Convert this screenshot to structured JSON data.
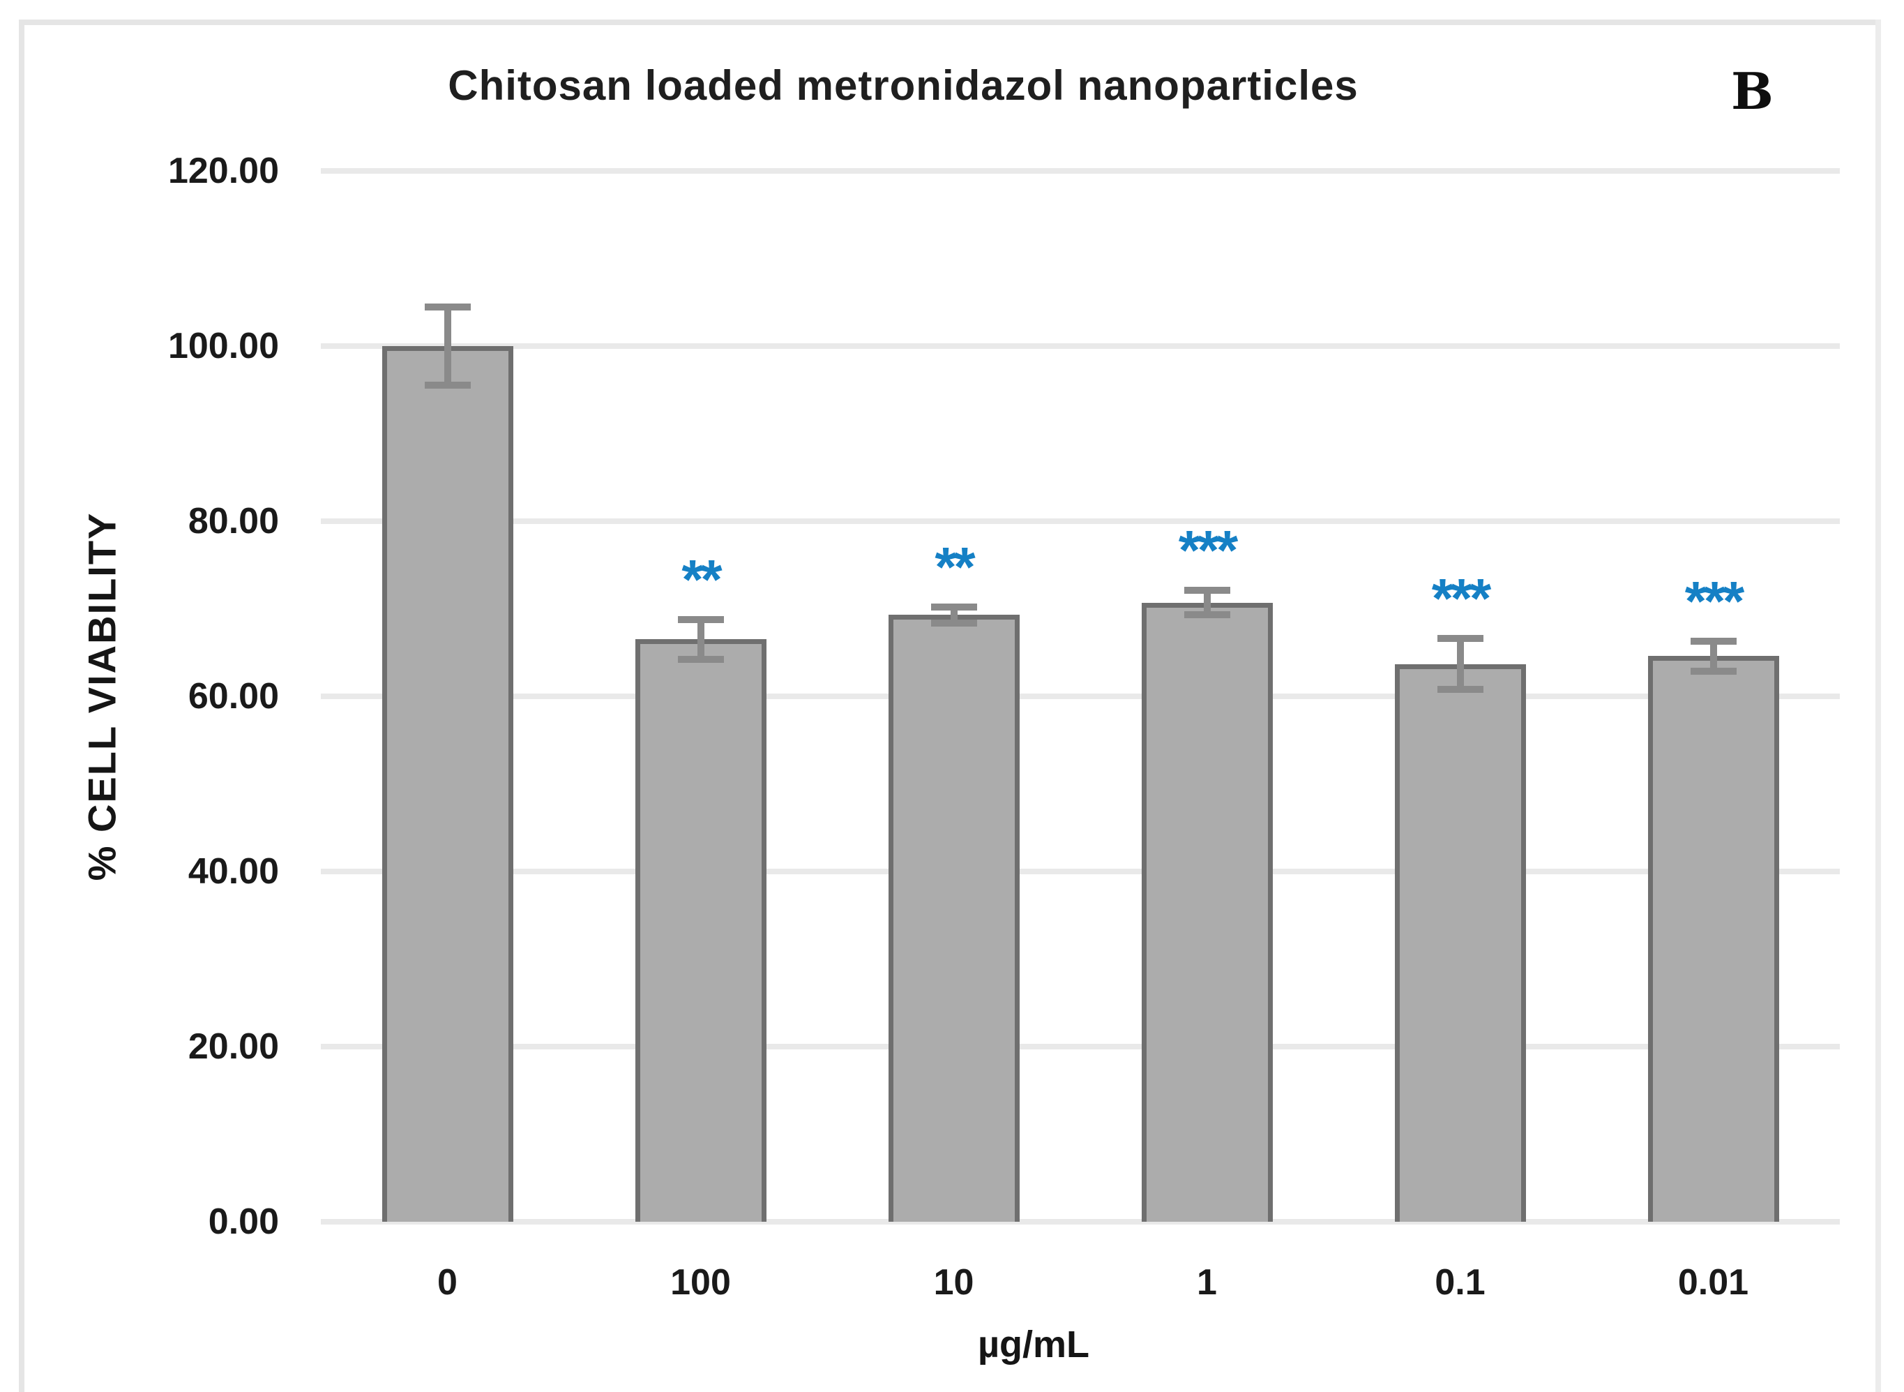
{
  "chart_data": {
    "type": "bar",
    "title": "Chitosan loaded metronidazol nanoparticles",
    "panel_label": "B",
    "xlabel": "µg/mL",
    "ylabel": "% CELL VIABILITY",
    "categories": [
      "0",
      "100",
      "10",
      "1",
      "0.1",
      "0.01"
    ],
    "values": [
      100.0,
      66.5,
      69.3,
      70.7,
      63.7,
      64.6
    ],
    "error_bars": [
      4.5,
      2.3,
      0.9,
      1.4,
      2.9,
      1.7
    ],
    "significance": [
      "",
      "**",
      "**",
      "***",
      "***",
      "***"
    ],
    "ylim": [
      0,
      120
    ],
    "ytick_values": [
      120,
      100,
      80,
      60,
      40,
      20,
      0
    ],
    "ytick_labels": [
      "120.00",
      "100.00",
      "80.00",
      "60.00",
      "40.00",
      "20.00",
      "0.00"
    ],
    "grid": "horizontal",
    "legend": "none",
    "colors": {
      "bar_fill": "#ACACAC",
      "bar_border": "#6F6F6F",
      "error_bar": "#8A8A8A",
      "significance": "#1580C5",
      "gridline": "#E9E9E9",
      "text": "#1C1C1C"
    }
  }
}
